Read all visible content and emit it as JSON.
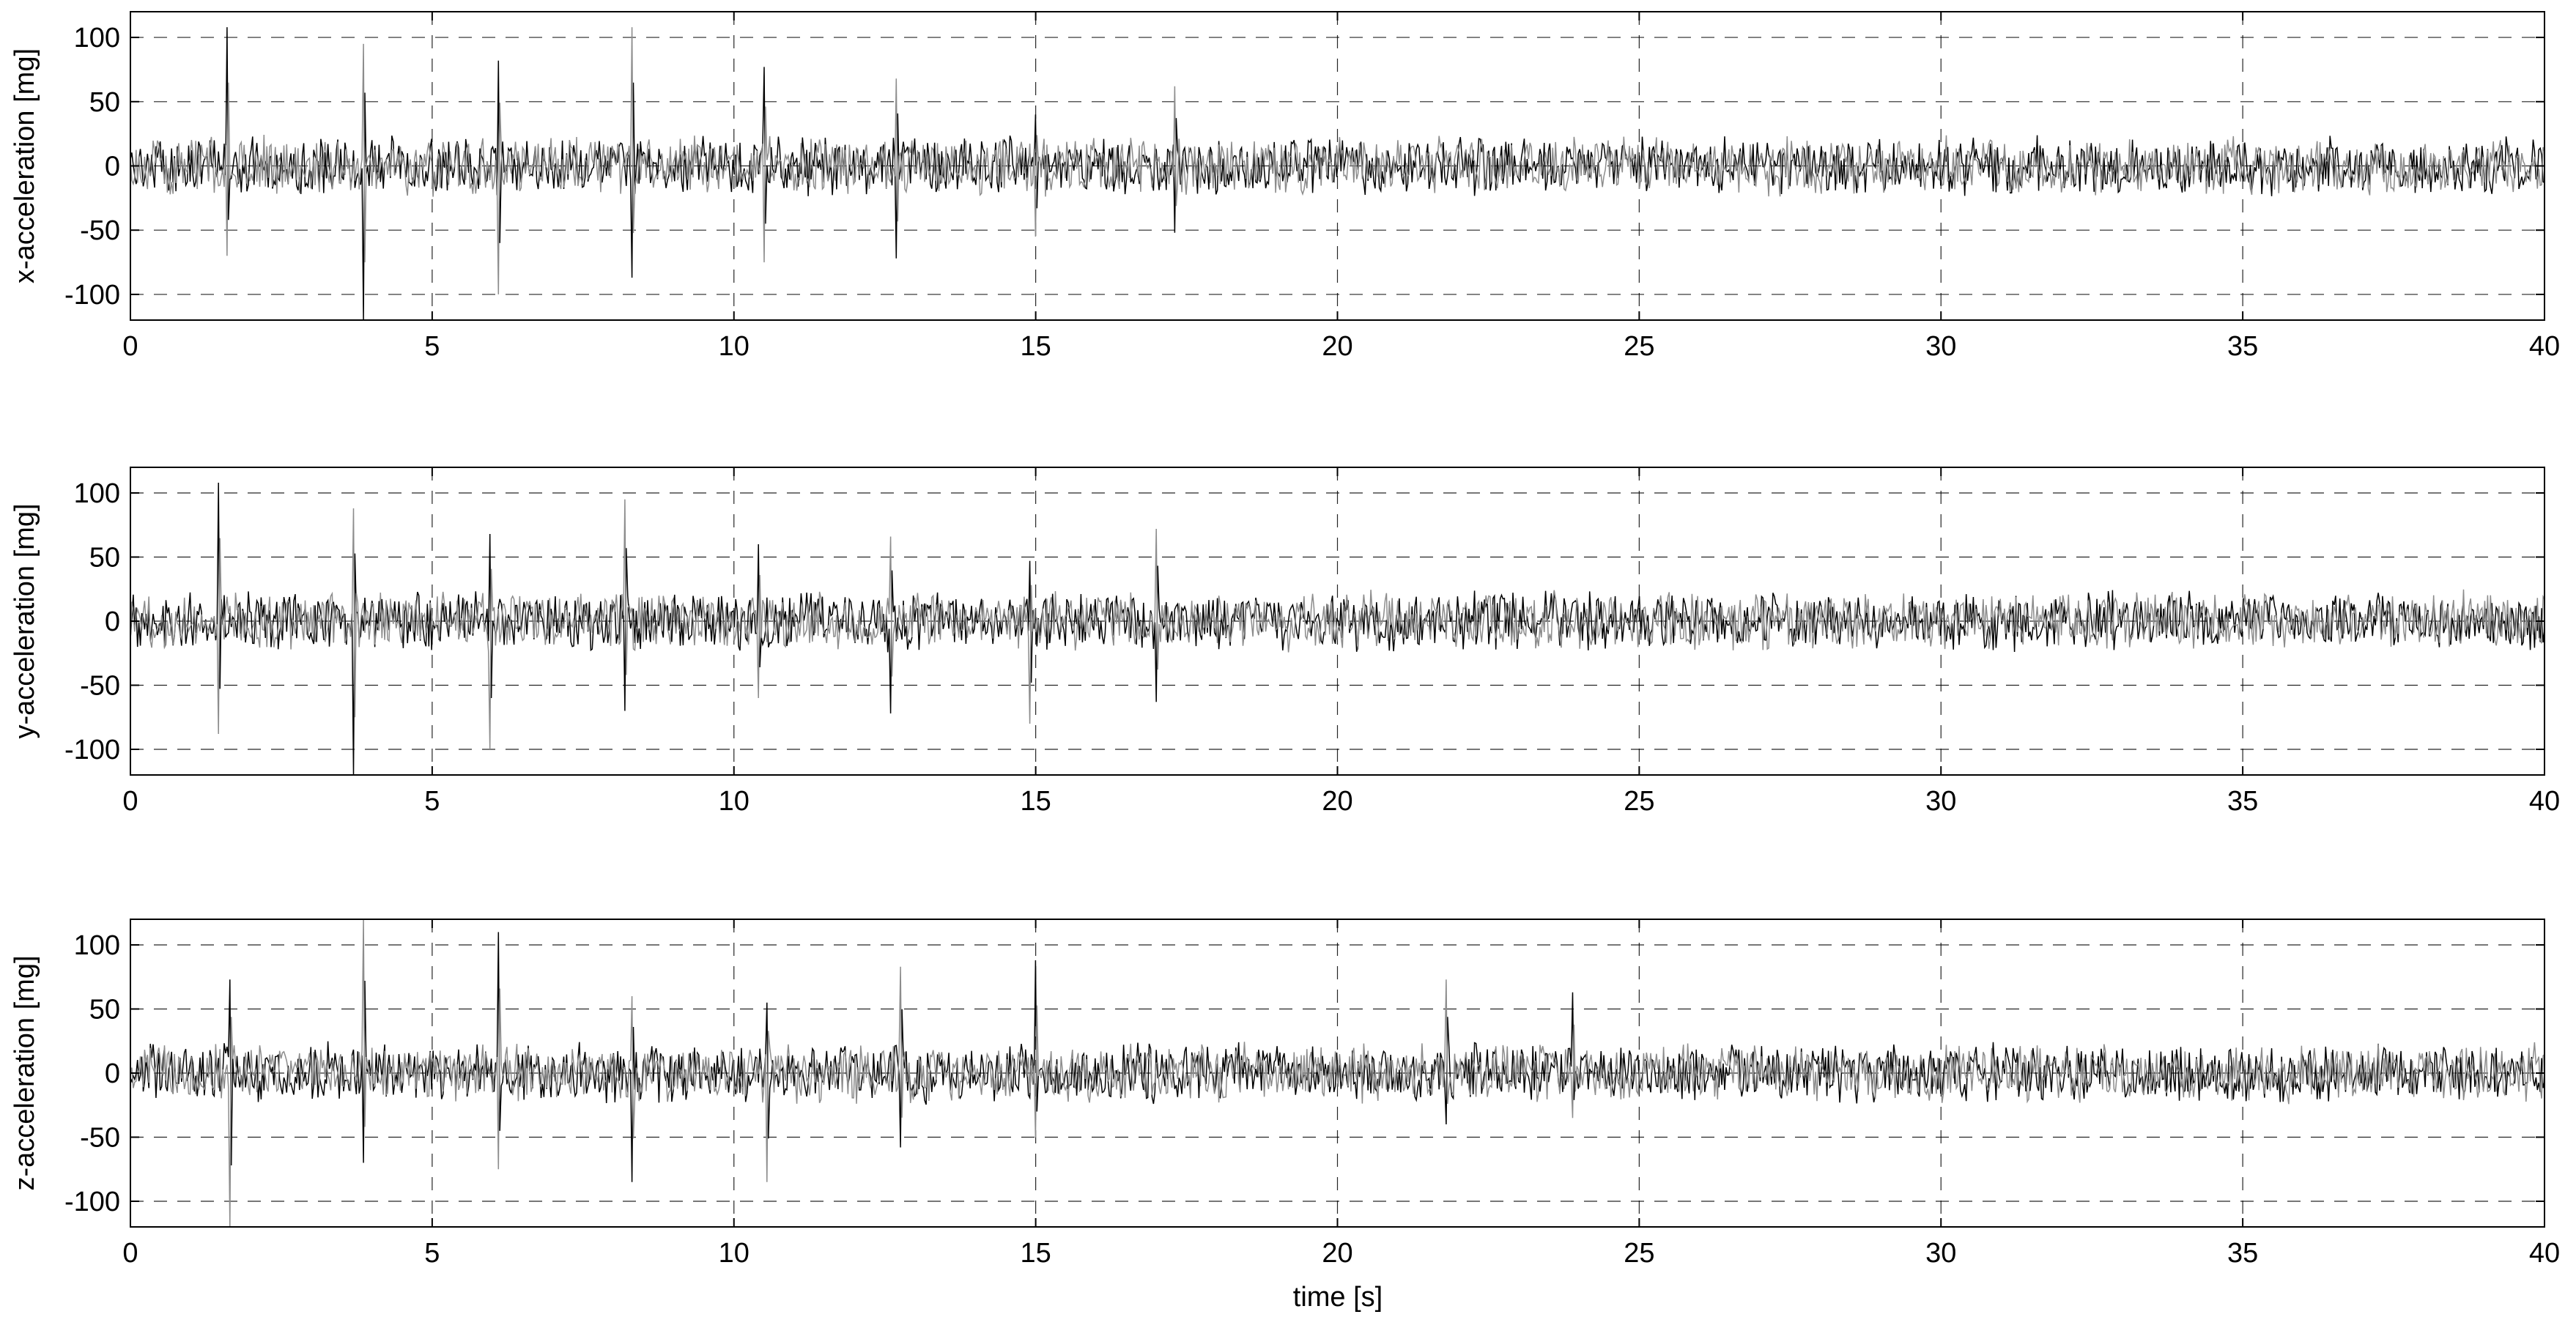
{
  "figure": {
    "xlabel": "time [s]"
  },
  "chart_data": [
    {
      "type": "line",
      "ylabel": "x-acceleration [mg]",
      "xlim": [
        0,
        40
      ],
      "ylim": [
        -120,
        120
      ],
      "xticks": [
        0,
        5,
        10,
        15,
        20,
        25,
        30,
        35,
        40
      ],
      "yticks": [
        -100,
        -50,
        0,
        50,
        100
      ],
      "grid": true,
      "x_range": [
        0,
        40
      ],
      "noise_amplitude_mg": 25,
      "spikes": [
        {
          "t": 1.6,
          "max": 108,
          "min": -70
        },
        {
          "t": 3.85,
          "max": 95,
          "min": -125
        },
        {
          "t": 6.1,
          "max": 82,
          "min": -100
        },
        {
          "t": 8.3,
          "max": 108,
          "min": -87
        },
        {
          "t": 10.5,
          "max": 77,
          "min": -75
        },
        {
          "t": 12.7,
          "max": 68,
          "min": -72
        },
        {
          "t": 15.0,
          "max": 40,
          "min": -55
        },
        {
          "t": 17.3,
          "max": 62,
          "min": -52
        }
      ],
      "series": [
        {
          "color": "#000000",
          "values": []
        },
        {
          "color": "#8c8c8c",
          "values": []
        }
      ]
    },
    {
      "type": "line",
      "ylabel": "y-acceleration [mg]",
      "xlim": [
        0,
        40
      ],
      "ylim": [
        -120,
        120
      ],
      "xticks": [
        0,
        5,
        10,
        15,
        20,
        25,
        30,
        35,
        40
      ],
      "yticks": [
        -100,
        -50,
        0,
        50,
        100
      ],
      "grid": true,
      "x_range": [
        0,
        40
      ],
      "noise_amplitude_mg": 25,
      "spikes": [
        {
          "t": 1.45,
          "max": 108,
          "min": -88
        },
        {
          "t": 3.7,
          "max": 88,
          "min": -125
        },
        {
          "t": 5.95,
          "max": 68,
          "min": -100
        },
        {
          "t": 8.2,
          "max": 95,
          "min": -70
        },
        {
          "t": 10.4,
          "max": 60,
          "min": -60
        },
        {
          "t": 12.6,
          "max": 66,
          "min": -72
        },
        {
          "t": 14.9,
          "max": 47,
          "min": -80
        },
        {
          "t": 17.0,
          "max": 72,
          "min": -63
        }
      ],
      "series": [
        {
          "color": "#000000",
          "values": []
        },
        {
          "color": "#8c8c8c",
          "values": []
        }
      ]
    },
    {
      "type": "line",
      "ylabel": "z-acceleration [mg]",
      "xlim": [
        0,
        40
      ],
      "ylim": [
        -120,
        120
      ],
      "xticks": [
        0,
        5,
        10,
        15,
        20,
        25,
        30,
        35,
        40
      ],
      "yticks": [
        -100,
        -50,
        0,
        50,
        100
      ],
      "grid": true,
      "x_range": [
        0,
        40
      ],
      "noise_amplitude_mg": 25,
      "spikes": [
        {
          "t": 1.65,
          "max": 73,
          "min": -120
        },
        {
          "t": 3.85,
          "max": 120,
          "min": -70
        },
        {
          "t": 6.1,
          "max": 110,
          "min": -75
        },
        {
          "t": 8.3,
          "max": 60,
          "min": -85
        },
        {
          "t": 10.55,
          "max": 55,
          "min": -85
        },
        {
          "t": 12.75,
          "max": 83,
          "min": -58
        },
        {
          "t": 15.0,
          "max": 88,
          "min": -50
        },
        {
          "t": 21.8,
          "max": 73,
          "min": -40
        },
        {
          "t": 23.9,
          "max": 63,
          "min": -35
        }
      ],
      "series": [
        {
          "color": "#000000",
          "values": []
        },
        {
          "color": "#8c8c8c",
          "values": []
        }
      ]
    }
  ]
}
